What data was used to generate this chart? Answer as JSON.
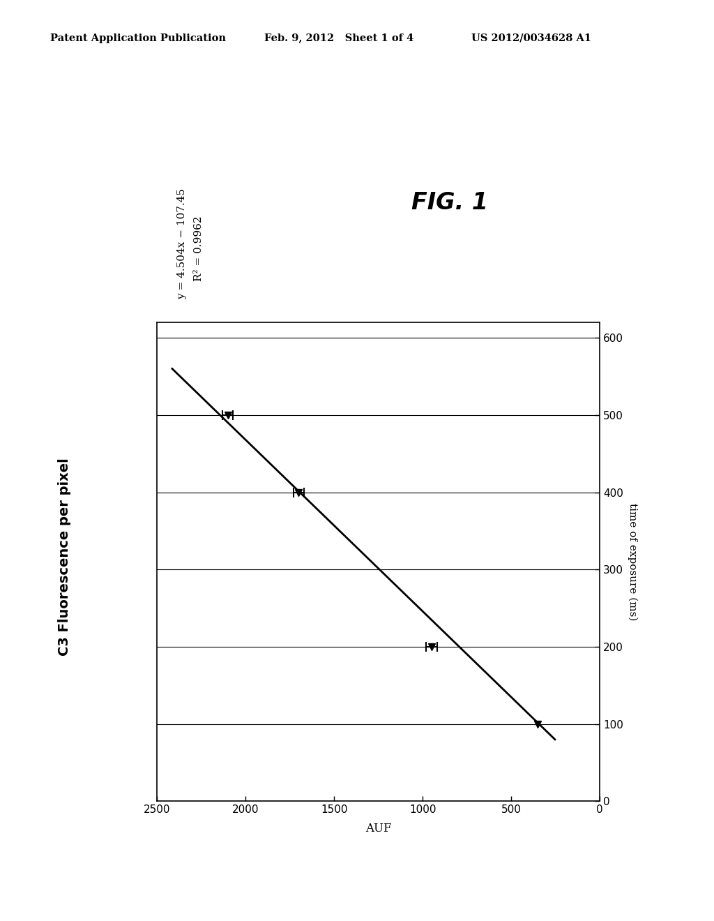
{
  "patent_header_left": "Patent Application Publication",
  "patent_header_mid": "Feb. 9, 2012   Sheet 1 of 4",
  "patent_header_right": "US 2012/0034628 A1",
  "fig_label": "FIG. 1",
  "equation_line1": "y = 4.504x − 107.45",
  "equation_line2": "R² = 0.9962",
  "c3_label": "C3 Fluorescence per pixel",
  "time_label": "time of exposure (ms)",
  "auf_label": "AUF",
  "x_data": [
    500,
    400,
    200,
    100
  ],
  "y_data": [
    2100,
    1700,
    950,
    350
  ],
  "xerr_auf": [
    30,
    30,
    30,
    0
  ],
  "fit_t_range": [
    80,
    560
  ],
  "auf_ticks": [
    2500,
    2000,
    1500,
    1000,
    500,
    0
  ],
  "time_ticks": [
    0,
    100,
    200,
    300,
    400,
    500,
    600
  ],
  "background_color": "#ffffff",
  "line_color": "#000000",
  "marker_size": 7,
  "line_width": 2.0
}
